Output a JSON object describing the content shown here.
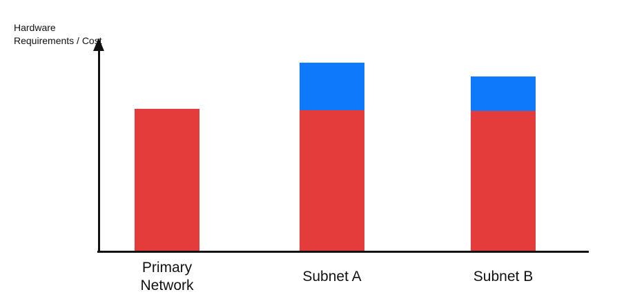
{
  "page": {
    "background": "#FFFFFF"
  },
  "chart_data": {
    "type": "bar",
    "stacked": true,
    "title": "",
    "xlabel": "",
    "ylabel": "Hardware Requirements / Cost",
    "categories": [
      "Primary Network",
      "Subnet A",
      "Subnet B"
    ],
    "series": [
      {
        "name": "red-segment",
        "color": "#E43B3B",
        "values": [
          67,
          66.5,
          66
        ]
      },
      {
        "name": "blue-segment",
        "color": "#0E7AFB",
        "values": [
          0,
          22.5,
          16.3
        ]
      }
    ],
    "ylim": [
      0,
      100
    ],
    "value_scale": "relative units (y-axis unlabeled, no tick marks)",
    "grid": false,
    "legend": false,
    "axis_color": "#111111",
    "text_color": "#111111"
  }
}
